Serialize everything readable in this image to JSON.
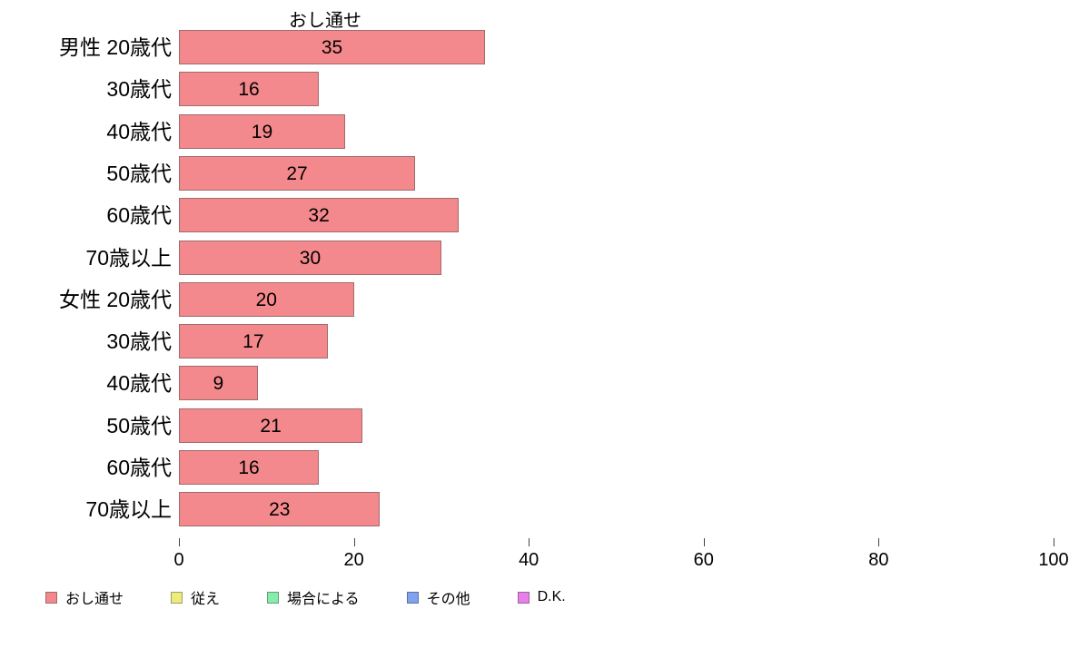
{
  "chart_data": {
    "type": "bar",
    "orientation": "horizontal",
    "title": "おし通せ",
    "categories": [
      "男性 20歳代",
      "30歳代",
      "40歳代",
      "50歳代",
      "60歳代",
      "70歳以上",
      "女性 20歳代",
      "30歳代",
      "40歳代",
      "50歳代",
      "60歳代",
      "70歳以上"
    ],
    "values": [
      35,
      16,
      19,
      27,
      32,
      30,
      20,
      17,
      9,
      21,
      16,
      23
    ],
    "xlim": [
      0,
      100
    ],
    "xticks": [
      0,
      20,
      40,
      60,
      80,
      100
    ],
    "grid": false,
    "bar_color": "#F4898D",
    "bar_border": "#9E6B6B",
    "value_label_color": "#000000",
    "legend_position": "bottom",
    "legend": [
      {
        "label": "おし通せ",
        "color": "#F4898D",
        "border": "#9E6B6B"
      },
      {
        "label": "従え",
        "color": "#ECEC7E",
        "border": "#9E9E5F"
      },
      {
        "label": "場合による",
        "color": "#86EDAD",
        "border": "#5F9E77"
      },
      {
        "label": "その他",
        "color": "#7FA3EE",
        "border": "#5F6F9E"
      },
      {
        "label": "D.K.",
        "color": "#E97FE9",
        "border": "#9E5F9E"
      }
    ]
  }
}
